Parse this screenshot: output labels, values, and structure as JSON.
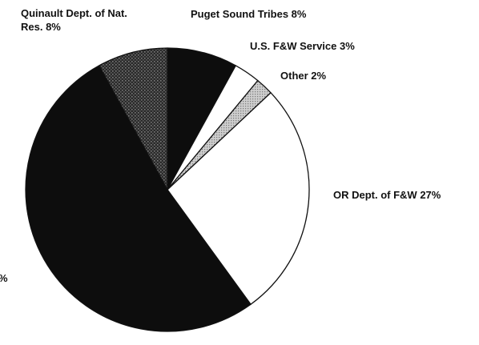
{
  "chart_data": {
    "type": "pie",
    "slices": [
      {
        "label_lines": [
          "Puget Sound Tribes 8%"
        ],
        "value": 8,
        "fill": "#0d0d0d",
        "pattern": "solid"
      },
      {
        "label_lines": [
          "U.S. F&W Service  3%"
        ],
        "value": 3,
        "fill": "#ffffff",
        "pattern": "solid"
      },
      {
        "label_lines": [
          "Other   2%"
        ],
        "value": 2,
        "fill": "#b4b4b4",
        "pattern": "dotted"
      },
      {
        "label_lines": [
          "OR Dept. of F&W  27%"
        ],
        "value": 27,
        "fill": "#ffffff",
        "pattern": "solid"
      },
      {
        "label_lines": [
          "%"
        ],
        "value": 52,
        "fill": "#0d0d0d",
        "pattern": "solid"
      },
      {
        "label_lines": [
          "Quinault Dept. of Nat.",
          "Res.  8%"
        ],
        "value": 8,
        "fill": "#3c3c3c",
        "pattern": "dotted"
      }
    ],
    "start_direction": "top",
    "direction": "clockwise",
    "outline_color": "#111111"
  }
}
